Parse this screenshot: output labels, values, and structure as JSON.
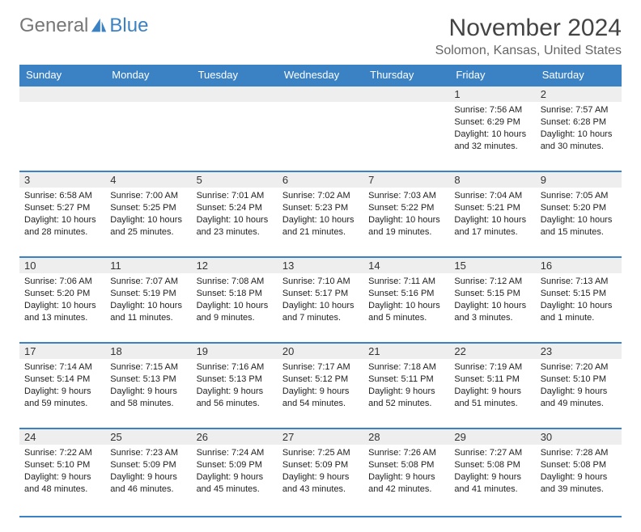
{
  "logo": {
    "general": "General",
    "blue": "Blue"
  },
  "title": "November 2024",
  "subtitle": "Solomon, Kansas, United States",
  "colors": {
    "header_bg": "#3b82c4",
    "header_text": "#ffffff",
    "daynum_bg": "#eeeeee",
    "text": "#222222",
    "border": "#3b82c4",
    "page_bg": "#ffffff"
  },
  "weekdays": [
    "Sunday",
    "Monday",
    "Tuesday",
    "Wednesday",
    "Thursday",
    "Friday",
    "Saturday"
  ],
  "weeks": [
    [
      {
        "n": "",
        "sr": "",
        "ss": "",
        "dl": ""
      },
      {
        "n": "",
        "sr": "",
        "ss": "",
        "dl": ""
      },
      {
        "n": "",
        "sr": "",
        "ss": "",
        "dl": ""
      },
      {
        "n": "",
        "sr": "",
        "ss": "",
        "dl": ""
      },
      {
        "n": "",
        "sr": "",
        "ss": "",
        "dl": ""
      },
      {
        "n": "1",
        "sr": "Sunrise: 7:56 AM",
        "ss": "Sunset: 6:29 PM",
        "dl": "Daylight: 10 hours and 32 minutes."
      },
      {
        "n": "2",
        "sr": "Sunrise: 7:57 AM",
        "ss": "Sunset: 6:28 PM",
        "dl": "Daylight: 10 hours and 30 minutes."
      }
    ],
    [
      {
        "n": "3",
        "sr": "Sunrise: 6:58 AM",
        "ss": "Sunset: 5:27 PM",
        "dl": "Daylight: 10 hours and 28 minutes."
      },
      {
        "n": "4",
        "sr": "Sunrise: 7:00 AM",
        "ss": "Sunset: 5:25 PM",
        "dl": "Daylight: 10 hours and 25 minutes."
      },
      {
        "n": "5",
        "sr": "Sunrise: 7:01 AM",
        "ss": "Sunset: 5:24 PM",
        "dl": "Daylight: 10 hours and 23 minutes."
      },
      {
        "n": "6",
        "sr": "Sunrise: 7:02 AM",
        "ss": "Sunset: 5:23 PM",
        "dl": "Daylight: 10 hours and 21 minutes."
      },
      {
        "n": "7",
        "sr": "Sunrise: 7:03 AM",
        "ss": "Sunset: 5:22 PM",
        "dl": "Daylight: 10 hours and 19 minutes."
      },
      {
        "n": "8",
        "sr": "Sunrise: 7:04 AM",
        "ss": "Sunset: 5:21 PM",
        "dl": "Daylight: 10 hours and 17 minutes."
      },
      {
        "n": "9",
        "sr": "Sunrise: 7:05 AM",
        "ss": "Sunset: 5:20 PM",
        "dl": "Daylight: 10 hours and 15 minutes."
      }
    ],
    [
      {
        "n": "10",
        "sr": "Sunrise: 7:06 AM",
        "ss": "Sunset: 5:20 PM",
        "dl": "Daylight: 10 hours and 13 minutes."
      },
      {
        "n": "11",
        "sr": "Sunrise: 7:07 AM",
        "ss": "Sunset: 5:19 PM",
        "dl": "Daylight: 10 hours and 11 minutes."
      },
      {
        "n": "12",
        "sr": "Sunrise: 7:08 AM",
        "ss": "Sunset: 5:18 PM",
        "dl": "Daylight: 10 hours and 9 minutes."
      },
      {
        "n": "13",
        "sr": "Sunrise: 7:10 AM",
        "ss": "Sunset: 5:17 PM",
        "dl": "Daylight: 10 hours and 7 minutes."
      },
      {
        "n": "14",
        "sr": "Sunrise: 7:11 AM",
        "ss": "Sunset: 5:16 PM",
        "dl": "Daylight: 10 hours and 5 minutes."
      },
      {
        "n": "15",
        "sr": "Sunrise: 7:12 AM",
        "ss": "Sunset: 5:15 PM",
        "dl": "Daylight: 10 hours and 3 minutes."
      },
      {
        "n": "16",
        "sr": "Sunrise: 7:13 AM",
        "ss": "Sunset: 5:15 PM",
        "dl": "Daylight: 10 hours and 1 minute."
      }
    ],
    [
      {
        "n": "17",
        "sr": "Sunrise: 7:14 AM",
        "ss": "Sunset: 5:14 PM",
        "dl": "Daylight: 9 hours and 59 minutes."
      },
      {
        "n": "18",
        "sr": "Sunrise: 7:15 AM",
        "ss": "Sunset: 5:13 PM",
        "dl": "Daylight: 9 hours and 58 minutes."
      },
      {
        "n": "19",
        "sr": "Sunrise: 7:16 AM",
        "ss": "Sunset: 5:13 PM",
        "dl": "Daylight: 9 hours and 56 minutes."
      },
      {
        "n": "20",
        "sr": "Sunrise: 7:17 AM",
        "ss": "Sunset: 5:12 PM",
        "dl": "Daylight: 9 hours and 54 minutes."
      },
      {
        "n": "21",
        "sr": "Sunrise: 7:18 AM",
        "ss": "Sunset: 5:11 PM",
        "dl": "Daylight: 9 hours and 52 minutes."
      },
      {
        "n": "22",
        "sr": "Sunrise: 7:19 AM",
        "ss": "Sunset: 5:11 PM",
        "dl": "Daylight: 9 hours and 51 minutes."
      },
      {
        "n": "23",
        "sr": "Sunrise: 7:20 AM",
        "ss": "Sunset: 5:10 PM",
        "dl": "Daylight: 9 hours and 49 minutes."
      }
    ],
    [
      {
        "n": "24",
        "sr": "Sunrise: 7:22 AM",
        "ss": "Sunset: 5:10 PM",
        "dl": "Daylight: 9 hours and 48 minutes."
      },
      {
        "n": "25",
        "sr": "Sunrise: 7:23 AM",
        "ss": "Sunset: 5:09 PM",
        "dl": "Daylight: 9 hours and 46 minutes."
      },
      {
        "n": "26",
        "sr": "Sunrise: 7:24 AM",
        "ss": "Sunset: 5:09 PM",
        "dl": "Daylight: 9 hours and 45 minutes."
      },
      {
        "n": "27",
        "sr": "Sunrise: 7:25 AM",
        "ss": "Sunset: 5:09 PM",
        "dl": "Daylight: 9 hours and 43 minutes."
      },
      {
        "n": "28",
        "sr": "Sunrise: 7:26 AM",
        "ss": "Sunset: 5:08 PM",
        "dl": "Daylight: 9 hours and 42 minutes."
      },
      {
        "n": "29",
        "sr": "Sunrise: 7:27 AM",
        "ss": "Sunset: 5:08 PM",
        "dl": "Daylight: 9 hours and 41 minutes."
      },
      {
        "n": "30",
        "sr": "Sunrise: 7:28 AM",
        "ss": "Sunset: 5:08 PM",
        "dl": "Daylight: 9 hours and 39 minutes."
      }
    ]
  ]
}
